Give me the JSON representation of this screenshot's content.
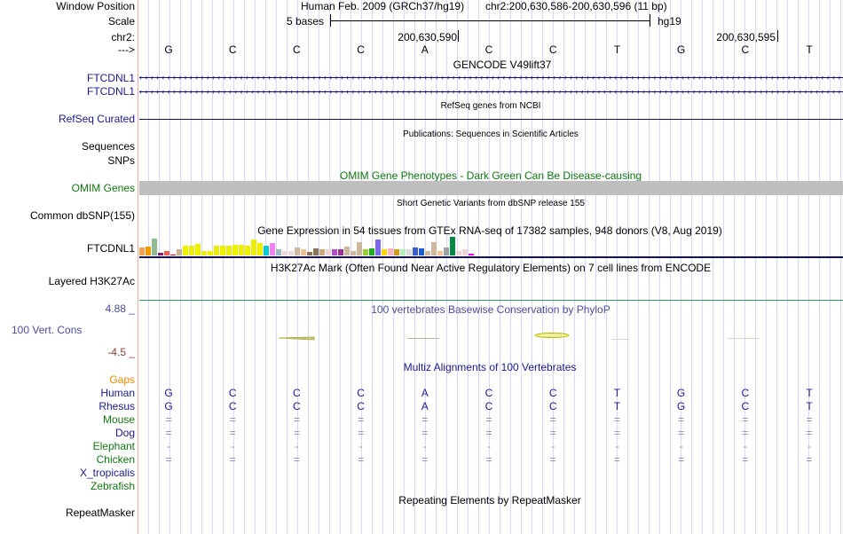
{
  "header": {
    "window_position_label": "Window Position",
    "assembly": "Human Feb. 2009 (GRCh37/hg19)",
    "position": "chr2:200,630,586-200,630,596 (11 bp)",
    "scale_label": "Scale",
    "scale_text": "5 bases",
    "scale_db": "hg19",
    "chrom_label": "chr2:",
    "tick1": "200,630,590",
    "tick2": "200,630,595",
    "strand_label": "--->"
  },
  "bases": [
    "G",
    "C",
    "C",
    "C",
    "A",
    "C",
    "C",
    "T",
    "G",
    "C",
    "T"
  ],
  "tracks": {
    "gencode": {
      "title": "GENCODE V49lift37",
      "items": [
        "FTCDNL1",
        "FTCDNL1"
      ]
    },
    "refseq": {
      "title": "RefSeq genes from NCBI",
      "label": "RefSeq Curated"
    },
    "publications": {
      "title": "Publications: Sequences in Scientific Articles",
      "label": "Sequences"
    },
    "snps_label": "SNPs",
    "omim": {
      "title": "OMIM Gene Phenotypes - Dark Green Can Be Disease-causing",
      "label": "OMIM Genes"
    },
    "dbsnp": {
      "title": "Short Genetic Variants from dbSNP release 155",
      "label": "Common dbSNP(155)"
    },
    "gtex": {
      "title": "Gene Expression in 54 tissues from GTEx RNA-seq of 17382 samples, 948 donors (V8, Aug 2019)",
      "label": "FTCDNL1",
      "values": [
        9,
        10,
        19,
        3,
        5,
        1,
        7,
        11,
        11,
        13,
        5,
        5,
        11,
        11,
        11,
        12,
        12,
        11,
        18,
        14,
        11,
        14,
        7,
        5,
        5,
        9,
        7,
        4,
        8,
        7,
        7,
        7,
        7,
        10,
        5,
        15,
        7,
        8,
        18,
        7,
        8,
        7,
        7,
        7,
        9,
        8,
        5,
        15,
        5,
        9,
        21,
        5,
        7,
        2
      ],
      "colors": [
        "#f4a050",
        "#ee9a00",
        "#8fbc8f",
        "#8b1a6b",
        "#f06050",
        "#e00000",
        "#c8b090",
        "#eeee00",
        "#eeee00",
        "#eeee00",
        "#eeee00",
        "#eeee00",
        "#eeee00",
        "#eeee00",
        "#eeee00",
        "#eeee00",
        "#eeee00",
        "#eeee00",
        "#eeee00",
        "#eeee00",
        "#00cdcd",
        "#ee82ee",
        "#9ab8c8",
        "#eed8d8",
        "#eed8d8",
        "#cdb79e",
        "#eec090",
        "#8b7355",
        "#8b7355",
        "#cdaa7d",
        "#eed5d2",
        "#b050c8",
        "#9a3090",
        "#cdb79e",
        "#cdb79e",
        "#cdb79e",
        "#9acd32",
        "#22aa22",
        "#7b68ee",
        "#ffd700",
        "#ffb6c1",
        "#cd9b1d",
        "#b4eeb4",
        "#d9d9d9",
        "#3a5fcd",
        "#1c5ccd",
        "#cdb79e",
        "#cdb79e",
        "#ffc090",
        "#a0a0a0",
        "#008b45",
        "#eed5d2",
        "#eed5d2",
        "#ee00ee"
      ]
    },
    "h3k27ac": {
      "title": "H3K27Ac Mark (Often Found Near Active Regulatory Elements) on 7 cell lines from ENCODE",
      "label": "Layered H3K27Ac"
    },
    "phylop": {
      "title": "100 vertebrates Basewise Conservation by PhyloP",
      "label": "100 Vert. Cons",
      "max": "4.88 _",
      "min": "-4.5 _"
    },
    "multiz": {
      "title": "Multiz Alignments of 100 Vertebrates",
      "gaps_label": "Gaps",
      "species": [
        {
          "name": "Human",
          "color": "#1a1a8c",
          "row": [
            "G",
            "C",
            "C",
            "C",
            "A",
            "C",
            "C",
            "T",
            "G",
            "C",
            "T"
          ]
        },
        {
          "name": "Rhesus",
          "color": "#1a1a8c",
          "row": [
            "G",
            "C",
            "C",
            "C",
            "A",
            "C",
            "C",
            "T",
            "G",
            "C",
            "T"
          ]
        },
        {
          "name": "Mouse",
          "color": "#117711",
          "row": [
            "=",
            "=",
            "=",
            "=",
            "=",
            "=",
            "=",
            "=",
            "=",
            "=",
            "="
          ]
        },
        {
          "name": "Dog",
          "color": "#1a1a8c",
          "row": [
            "=",
            "=",
            "=",
            "=",
            "=",
            "=",
            "=",
            "=",
            "=",
            "=",
            "="
          ]
        },
        {
          "name": "Elephant",
          "color": "#117711",
          "row": [
            "-",
            "-",
            "-",
            "-",
            "-",
            "-",
            "-",
            "-",
            "-",
            "-",
            "-"
          ]
        },
        {
          "name": "Chicken",
          "color": "#117711",
          "row": [
            "=",
            "=",
            "=",
            "=",
            "=",
            "=",
            "=",
            "=",
            "=",
            "=",
            "="
          ]
        },
        {
          "name": "X_tropicalis",
          "color": "#1a1a8c",
          "row": []
        },
        {
          "name": "Zebrafish",
          "color": "#117711",
          "row": []
        }
      ]
    },
    "repeatmasker": {
      "title": "Repeating Elements by RepeatMasker",
      "label": "RepeatMasker"
    }
  }
}
